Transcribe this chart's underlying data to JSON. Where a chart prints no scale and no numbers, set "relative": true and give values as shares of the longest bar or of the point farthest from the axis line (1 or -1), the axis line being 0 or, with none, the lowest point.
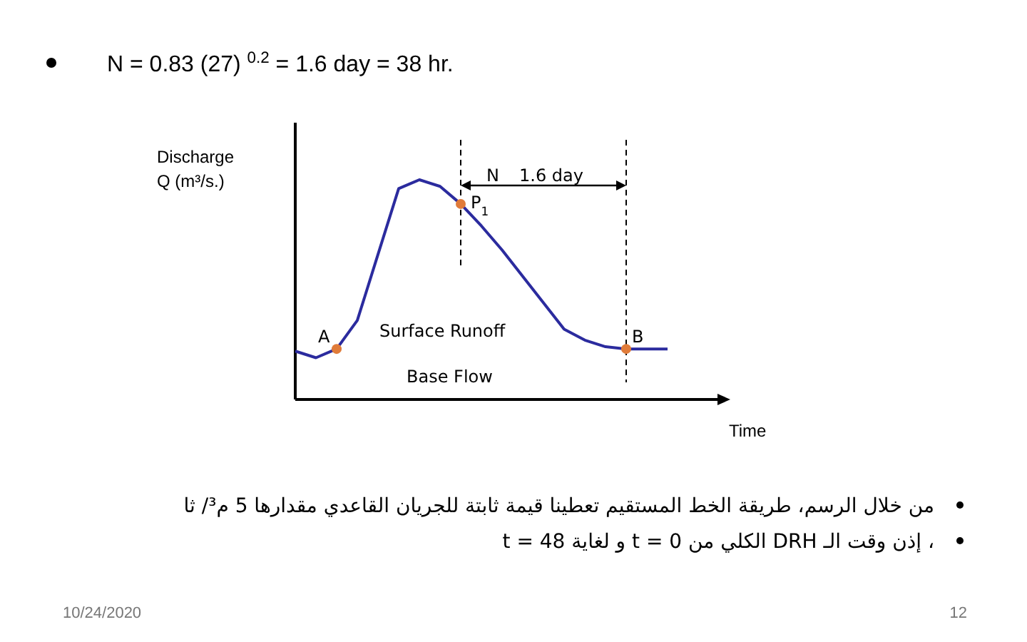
{
  "chart_data": {
    "type": "line",
    "title": "N = 0.83 (27) $^{0.2}$ = 1.6 day = 38 hr.",
    "xlabel": "Time",
    "ylabel": "Discharge Q (m³/s.)",
    "relative": true,
    "categories": [
      null,
      null,
      null,
      null,
      null,
      null,
      null,
      null,
      null,
      null,
      null,
      null,
      null,
      null,
      null,
      null,
      null,
      null,
      null
    ],
    "series": [
      {
        "color": "#2b2b9e",
        "values": [
          0.22,
          0.19,
          0.23,
          0.36,
          0.66,
          0.96,
          1.0,
          0.97,
          0.89,
          0.79,
          0.68,
          0.56,
          0.44,
          0.32,
          0.27,
          0.24,
          0.23,
          0.23,
          0.23
        ]
      }
    ],
    "annotations": [
      "N",
      "1.6 day",
      "A",
      "P$_{1}$",
      "B",
      "Surface Runoff",
      "Base Flow",
      "من خلال الرسم، طريقة الخط المستقيم تعطينا قيمة ثابتة للجريان القاعدي مقدارها 5 م³/ ثا",
      "، إذن وقت الـ DRH الكلي من t = 0 و لغاية t = 48",
      "10/24/2020",
      "12"
    ],
    "grid": false
  }
}
